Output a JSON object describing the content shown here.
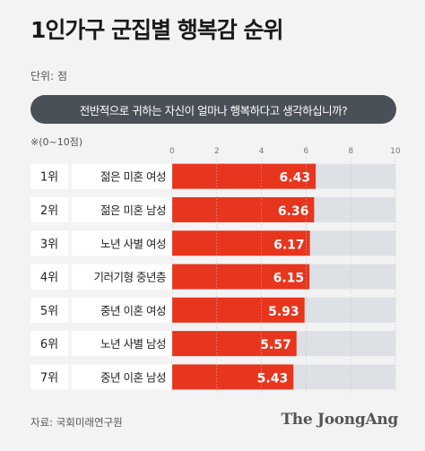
{
  "title": "1인가구 군집별 행복감 순위",
  "unit_label": "단위: 점",
  "question": "전반적으로 귀하는 자신이 얼마나 행복하다고 생각하십니까?",
  "scale_note": "※(0~10점)",
  "source": "자료: 국회미래연구원",
  "brand": "The JoongAng",
  "colors": {
    "bar": "#e8351d",
    "track": "#dde1e5",
    "rank_bg": "#ffffff",
    "label_bg": "#ffffff",
    "tick_text": "#777777"
  },
  "chart_data": {
    "type": "bar",
    "orientation": "horizontal",
    "ranks": [
      "1위",
      "2위",
      "3위",
      "4위",
      "5위",
      "6위",
      "7위"
    ],
    "categories": [
      "젊은 미혼 여성",
      "젊은 미혼 남성",
      "노년 사별 여성",
      "기러기형 중년층",
      "중년 이혼 여성",
      "노년 사별 남성",
      "중년 이혼 남성"
    ],
    "values": [
      6.43,
      6.36,
      6.17,
      6.15,
      5.93,
      5.57,
      5.43
    ],
    "value_labels": [
      "6.43",
      "6.36",
      "6.17",
      "6.15",
      "5.93",
      "5.57",
      "5.43"
    ],
    "xlim": [
      0,
      10
    ],
    "x_ticks": [
      "0",
      "2",
      "4",
      "6",
      "8",
      "10"
    ],
    "grid": true
  }
}
